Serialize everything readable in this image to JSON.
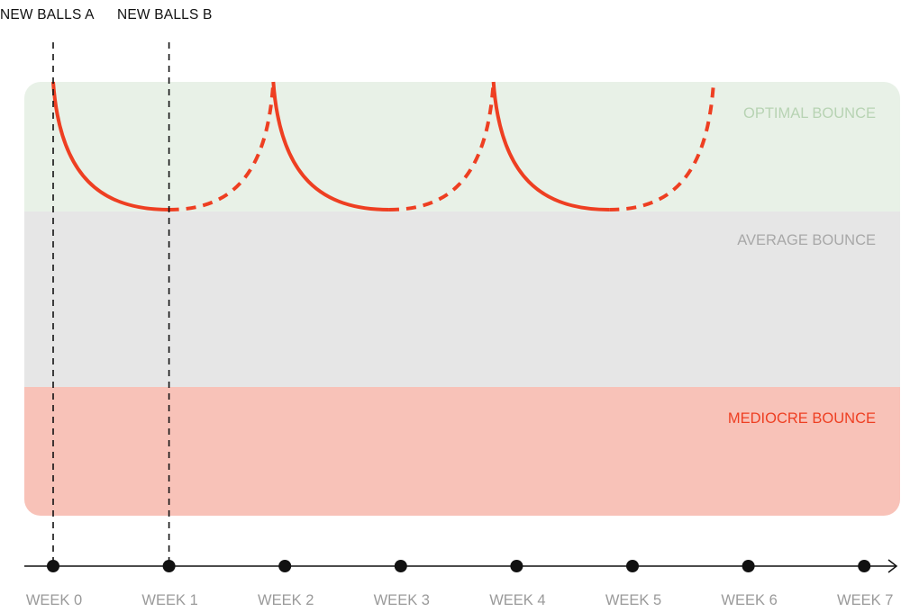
{
  "chart_data": {
    "type": "line",
    "title": "",
    "xlabel": "",
    "ylabel": "",
    "x_ticks": [
      "WEEK 0",
      "WEEK 1",
      "WEEK 2",
      "WEEK 3",
      "WEEK 4",
      "WEEK 5",
      "WEEK 6",
      "WEEK 7"
    ],
    "xlim": [
      0,
      7
    ],
    "zones": [
      {
        "label": "OPTIMAL BOUNCE",
        "fill": "#e8f1e7",
        "text_color": "#b7d3b3"
      },
      {
        "label": "AVERAGE BOUNCE",
        "fill": "#e6e6e6",
        "text_color": "#a8a8a8"
      },
      {
        "label": "MEDIOCRE BOUNCE",
        "fill": "#f8c2b8",
        "text_color": "#ee3f22"
      }
    ],
    "markers": [
      {
        "label": "NEW BALLS A",
        "x": 0
      },
      {
        "label": "NEW BALLS B",
        "x": 1
      }
    ],
    "cycles": [
      {
        "start": 0,
        "trough": 1,
        "end": 1.9
      },
      {
        "start": 1.9,
        "trough": 2.9,
        "end": 3.8
      },
      {
        "start": 3.8,
        "trough": 4.8,
        "end": 5.7
      }
    ],
    "line_color": "#ee3f22",
    "axis_color": "#111111",
    "tick_label_color": "#9a9a9a"
  }
}
